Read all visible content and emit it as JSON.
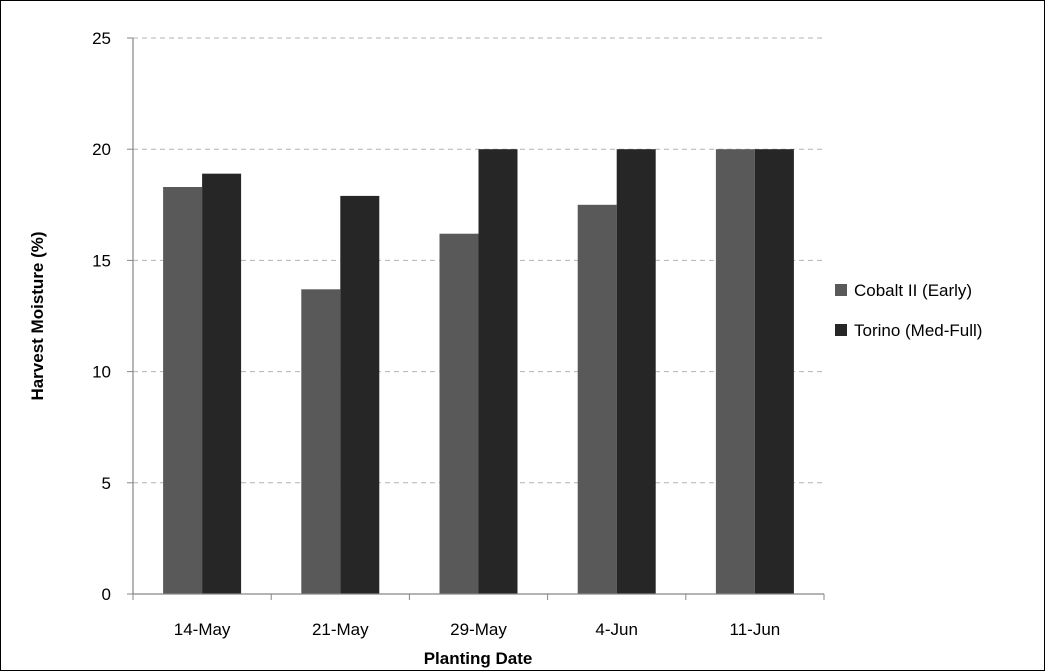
{
  "chart_data": {
    "type": "bar",
    "title": "",
    "xlabel": "Planting Date",
    "ylabel": "Harvest Moisture (%)",
    "categories": [
      "14-May",
      "21-May",
      "29-May",
      "4-Jun",
      "11-Jun"
    ],
    "series": [
      {
        "name": "Cobalt II (Early)",
        "color": "#595959",
        "values": [
          18.3,
          13.7,
          16.2,
          17.5,
          20.0
        ]
      },
      {
        "name": "Torino (Med-Full)",
        "color": "#262626",
        "values": [
          18.9,
          17.9,
          20.0,
          20.0,
          20.0
        ]
      }
    ],
    "ylim": [
      0,
      25
    ],
    "yticks": [
      0,
      5,
      10,
      15,
      20,
      25
    ],
    "grid": true,
    "legend_position": "right"
  }
}
